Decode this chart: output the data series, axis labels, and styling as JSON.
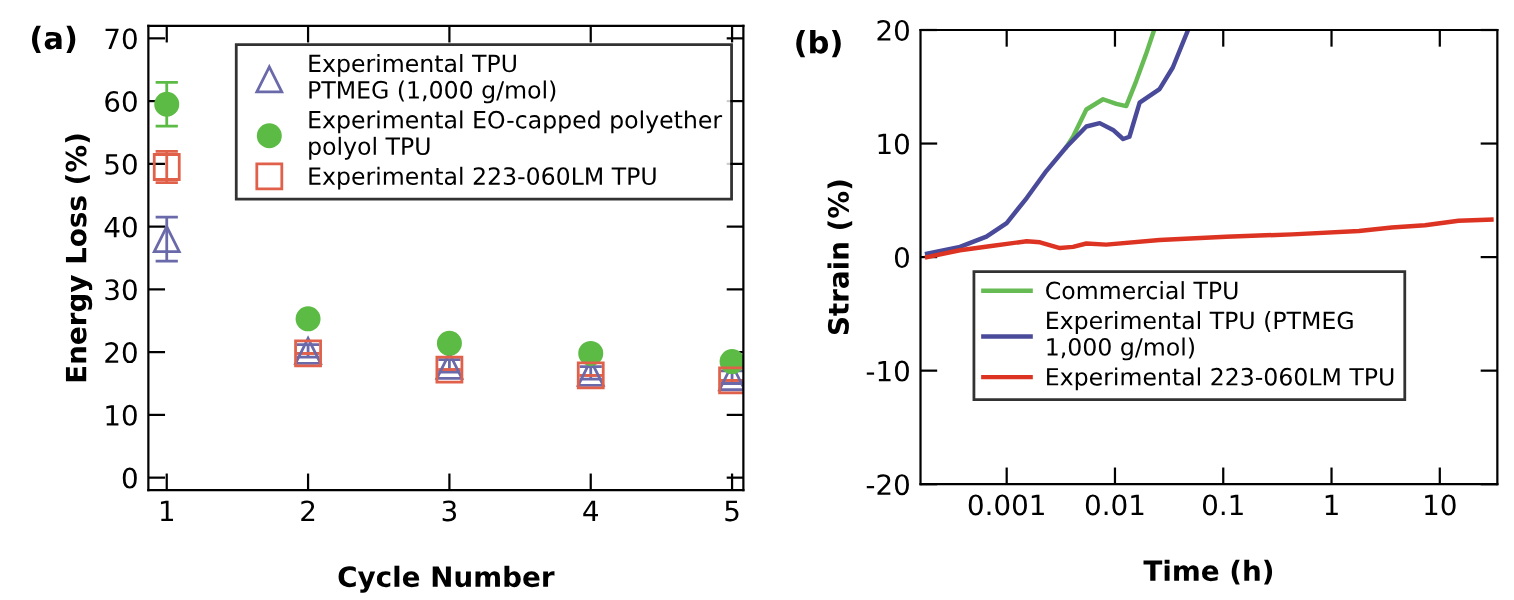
{
  "chart_data": [
    {
      "type": "scatter",
      "title": "(a)",
      "xlabel": "Cycle Number",
      "ylabel": "Energy Loss (%)",
      "x": [
        1,
        2,
        3,
        4,
        5
      ],
      "xlim": [
        0.87,
        5.08
      ],
      "xticks": [
        1,
        2,
        3,
        4,
        5
      ],
      "ylim": [
        -2,
        72
      ],
      "yticks": [
        0,
        10,
        20,
        30,
        40,
        50,
        60,
        70
      ],
      "grid": false,
      "legend": "top right",
      "series": [
        {
          "name": "Experimental TPU\nPTMEG (1,000 g/mol)",
          "color": "#6a6aaa",
          "marker": "triangle",
          "values": [
            38,
            20.2,
            17.8,
            16.7,
            16.0
          ],
          "errors": [
            3.5,
            1,
            1,
            1,
            1
          ]
        },
        {
          "name": "Experimental EO-capped polyether\npolyol TPU",
          "color": "#5cbb44",
          "marker": "circle",
          "values": [
            59.5,
            25.3,
            21.4,
            19.8,
            18.5
          ],
          "errors": [
            3.5,
            0.5,
            0.5,
            0.5,
            0.5
          ]
        },
        {
          "name": "Experimental 223-060LM TPU",
          "color": "#e0604a",
          "marker": "square",
          "values": [
            49.5,
            19.8,
            17.2,
            16.3,
            15.5
          ],
          "errors": [
            2.5,
            null,
            null,
            null,
            null
          ]
        }
      ]
    },
    {
      "type": "line",
      "title": "(b)",
      "xlabel": "Time (h)",
      "ylabel": "Strain (%)",
      "log": "x",
      "xlim": [
        0.00016,
        34
      ],
      "xticks": [
        0.001,
        0.01,
        0.1,
        1,
        10
      ],
      "ylim": [
        -20,
        20
      ],
      "yticks": [
        -20,
        -10,
        0,
        10,
        20
      ],
      "grid": false,
      "legend": "bottom right",
      "marker": "none",
      "line_style": "solid",
      "series": [
        {
          "name": "Commercial TPU",
          "color": "#66bb55",
          "x": [
            0.00356,
            0.0041,
            0.00544,
            0.00776,
            0.0103,
            0.0127,
            0.0157,
            0.0194,
            0.023
          ],
          "values": [
            9.7,
            10.6,
            13.0,
            13.9,
            13.5,
            13.3,
            15.5,
            17.9,
            20
          ]
        },
        {
          "name": "Experimental TPU (PTMEG\n1,000 g/mol)",
          "color": "#4a4a9a",
          "x": [
            0.000184,
            0.00037,
            0.00065,
            0.001,
            0.00153,
            0.00233,
            0.00356,
            0.00544,
            0.00723,
            0.0096,
            0.0119,
            0.0136,
            0.0169,
            0.0258,
            0.0342,
            0.0473
          ],
          "values": [
            0.3,
            0.9,
            1.8,
            3.0,
            5.2,
            7.6,
            9.7,
            11.5,
            11.8,
            11.2,
            10.4,
            10.6,
            13.6,
            14.8,
            16.7,
            20
          ]
        },
        {
          "name": "Experimental 223-060LM TPU",
          "color": "#dd3322",
          "x": [
            0.000184,
            0.00037,
            0.00075,
            0.00153,
            0.00203,
            0.0031,
            0.0041,
            0.00544,
            0.0083,
            0.0258,
            0.106,
            0.435,
            1.79,
            3.6,
            7.3,
            14.9,
            30
          ],
          "values": [
            0,
            0.6,
            1.0,
            1.4,
            1.3,
            0.8,
            0.9,
            1.2,
            1.1,
            1.5,
            1.8,
            2.0,
            2.3,
            2.6,
            2.8,
            3.2,
            3.3
          ]
        }
      ]
    }
  ]
}
